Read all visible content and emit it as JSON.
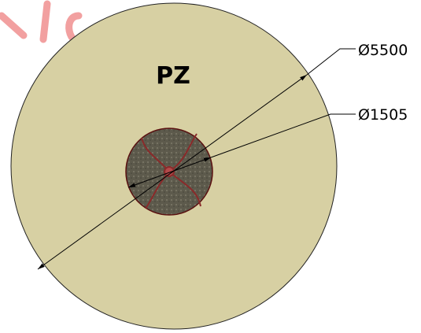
{
  "zone_label": "PZ",
  "dimensions": [
    {
      "label": "Ø5500"
    },
    {
      "label": "Ø1505"
    }
  ]
}
